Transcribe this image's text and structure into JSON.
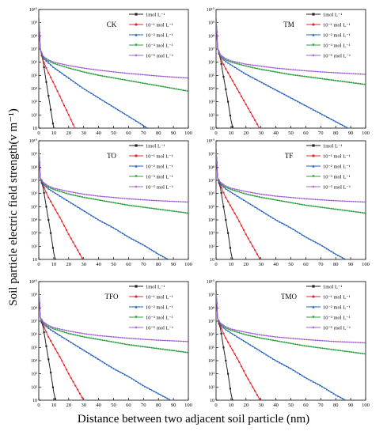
{
  "figure": {
    "ylabel": "Soil particle electric field strength(v m⁻¹)",
    "xlabel": "Distance between two adjacent soil particle (nm)"
  },
  "legend_entries": [
    {
      "label": "1mol L⁻¹",
      "color": "#222222",
      "marker": "square"
    },
    {
      "label": "10⁻¹ mol L⁻¹",
      "color": "#e8232a",
      "marker": "circle"
    },
    {
      "label": "10⁻² mol L⁻¹",
      "color": "#1f5fbf",
      "marker": "triangle"
    },
    {
      "label": "10⁻³ mol L⁻¹",
      "color": "#2ea043",
      "marker": "triangle-down"
    },
    {
      "label": "10⁻⁵ mol L⁻¹",
      "color": "#a35fd6",
      "marker": "diamond"
    }
  ],
  "chart_data": [
    {
      "type": "line",
      "title": "CK",
      "xlim": [
        0,
        100
      ],
      "ylim_log10": [
        1,
        10
      ],
      "x_ticks": [
        0,
        10,
        20,
        30,
        40,
        50,
        60,
        70,
        80,
        90,
        100
      ],
      "y_ticks": [
        "10",
        "10²",
        "10³",
        "10⁴",
        "10⁵",
        "10⁶",
        "10⁷",
        "10⁸",
        "10⁹",
        "10¹⁰"
      ],
      "series": [
        {
          "name": "1mol L⁻¹",
          "x": [
            0,
            1,
            3,
            5,
            8,
            10,
            12
          ],
          "y_log10": [
            9.5,
            7.0,
            6.0,
            4.5,
            2.4,
            1.0,
            0
          ]
        },
        {
          "name": "10⁻¹ mol L⁻¹",
          "x": [
            0,
            1,
            3,
            6,
            10,
            15,
            20,
            25
          ],
          "y_log10": [
            9.5,
            7.0,
            6.1,
            5.3,
            4.4,
            3.2,
            2.0,
            0.8
          ]
        },
        {
          "name": "10⁻² mol L⁻¹",
          "x": [
            0,
            1,
            3,
            6,
            10,
            20,
            30,
            40,
            50,
            60,
            70,
            75
          ],
          "y_log10": [
            9.5,
            7.0,
            6.3,
            6.0,
            5.6,
            4.8,
            4.0,
            3.3,
            2.6,
            1.9,
            1.2,
            0.8
          ]
        },
        {
          "name": "10⁻³ mol L⁻¹",
          "x": [
            0,
            1,
            3,
            6,
            10,
            20,
            30,
            40,
            50,
            60,
            70,
            80,
            90,
            100
          ],
          "y_log10": [
            9.5,
            7.0,
            6.4,
            6.1,
            5.9,
            5.55,
            5.25,
            5.0,
            4.8,
            4.6,
            4.4,
            4.2,
            4.0,
            3.8
          ]
        },
        {
          "name": "10⁻⁵ mol L⁻¹",
          "x": [
            0,
            1,
            3,
            6,
            10,
            20,
            30,
            40,
            50,
            60,
            70,
            80,
            90,
            100
          ],
          "y_log10": [
            9.5,
            7.0,
            6.45,
            6.2,
            6.0,
            5.75,
            5.55,
            5.4,
            5.27,
            5.15,
            5.05,
            4.95,
            4.87,
            4.8
          ]
        }
      ]
    },
    {
      "type": "line",
      "title": "TM",
      "xlim": [
        0,
        100
      ],
      "ylim_log10": [
        1,
        10
      ],
      "x_ticks": [
        0,
        10,
        20,
        30,
        40,
        50,
        60,
        70,
        80,
        90,
        100
      ],
      "y_ticks": [
        "10",
        "10²",
        "10³",
        "10⁴",
        "10⁵",
        "10⁶",
        "10⁷",
        "10⁸",
        "10⁹",
        "10¹⁰"
      ],
      "series": [
        {
          "name": "1mol L⁻¹",
          "x": [
            0,
            1,
            3,
            5,
            8,
            10,
            12
          ],
          "y_log10": [
            9.5,
            7.1,
            6.2,
            4.9,
            3.0,
            1.6,
            0.6
          ]
        },
        {
          "name": "10⁻¹ mol L⁻¹",
          "x": [
            0,
            1,
            3,
            6,
            10,
            15,
            20,
            25,
            30
          ],
          "y_log10": [
            9.5,
            7.1,
            6.3,
            5.6,
            4.8,
            3.8,
            2.8,
            1.8,
            0.8
          ]
        },
        {
          "name": "10⁻² mol L⁻¹",
          "x": [
            0,
            1,
            3,
            6,
            10,
            20,
            30,
            40,
            50,
            60,
            70,
            80,
            90
          ],
          "y_log10": [
            9.5,
            7.1,
            6.4,
            6.1,
            5.8,
            5.1,
            4.5,
            3.9,
            3.3,
            2.7,
            2.1,
            1.5,
            0.9
          ]
        },
        {
          "name": "10⁻³ mol L⁻¹",
          "x": [
            0,
            1,
            3,
            6,
            10,
            20,
            30,
            40,
            50,
            60,
            70,
            80,
            90,
            100
          ],
          "y_log10": [
            9.5,
            7.1,
            6.5,
            6.2,
            6.0,
            5.7,
            5.45,
            5.25,
            5.05,
            4.9,
            4.75,
            4.6,
            4.45,
            4.3
          ]
        },
        {
          "name": "10⁻⁵ mol L⁻¹",
          "x": [
            0,
            1,
            3,
            6,
            10,
            20,
            30,
            40,
            50,
            60,
            70,
            80,
            90,
            100
          ],
          "y_log10": [
            9.5,
            7.1,
            6.55,
            6.3,
            6.1,
            5.85,
            5.7,
            5.55,
            5.45,
            5.35,
            5.27,
            5.2,
            5.14,
            5.08
          ]
        }
      ]
    },
    {
      "type": "line",
      "title": "TO",
      "xlim": [
        0,
        100
      ],
      "ylim_log10": [
        1,
        10
      ],
      "x_ticks": [
        0,
        10,
        20,
        30,
        40,
        50,
        60,
        70,
        80,
        90,
        100
      ],
      "y_ticks": [
        "10",
        "10²",
        "10³",
        "10⁴",
        "10⁵",
        "10⁶",
        "10⁷",
        "10⁸",
        "10⁹",
        "10¹⁰"
      ],
      "series": [
        {
          "name": "1mol L⁻¹",
          "x": [
            0,
            1,
            3,
            5,
            8,
            10,
            12
          ],
          "y_log10": [
            9.5,
            7.2,
            6.4,
            5.0,
            3.0,
            1.5,
            0.5
          ]
        },
        {
          "name": "10⁻¹ mol L⁻¹",
          "x": [
            0,
            1,
            3,
            6,
            10,
            15,
            20,
            25,
            30
          ],
          "y_log10": [
            9.5,
            7.2,
            6.6,
            5.8,
            5.0,
            4.0,
            2.9,
            1.9,
            0.9
          ]
        },
        {
          "name": "10⁻² mol L⁻¹",
          "x": [
            0,
            1,
            3,
            6,
            10,
            20,
            30,
            40,
            50,
            60,
            70,
            80,
            90
          ],
          "y_log10": [
            9.5,
            7.2,
            6.7,
            6.4,
            6.1,
            5.4,
            4.7,
            4.0,
            3.4,
            2.7,
            2.1,
            1.4,
            0.8
          ]
        },
        {
          "name": "10⁻³ mol L⁻¹",
          "x": [
            0,
            1,
            3,
            6,
            10,
            20,
            30,
            40,
            50,
            60,
            70,
            80,
            90,
            100
          ],
          "y_log10": [
            9.5,
            7.2,
            6.8,
            6.5,
            6.3,
            5.95,
            5.7,
            5.5,
            5.3,
            5.1,
            4.95,
            4.8,
            4.65,
            4.5
          ]
        },
        {
          "name": "10⁻⁵ mol L⁻¹",
          "x": [
            0,
            1,
            3,
            6,
            10,
            20,
            30,
            40,
            50,
            60,
            70,
            80,
            90,
            100
          ],
          "y_log10": [
            9.5,
            7.2,
            6.85,
            6.6,
            6.4,
            6.15,
            5.95,
            5.8,
            5.7,
            5.6,
            5.52,
            5.45,
            5.4,
            5.35
          ]
        }
      ]
    },
    {
      "type": "line",
      "title": "TF",
      "xlim": [
        0,
        100
      ],
      "ylim_log10": [
        1,
        10
      ],
      "x_ticks": [
        0,
        10,
        20,
        30,
        40,
        50,
        60,
        70,
        80,
        90,
        100
      ],
      "y_ticks": [
        "10",
        "10²",
        "10³",
        "10⁴",
        "10⁵",
        "10⁶",
        "10⁷",
        "10⁸",
        "10⁹",
        "10¹⁰"
      ],
      "series": [
        {
          "name": "1mol L⁻¹",
          "x": [
            0,
            1,
            3,
            5,
            8,
            10,
            12
          ],
          "y_log10": [
            9.5,
            7.2,
            6.4,
            5.0,
            3.0,
            1.5,
            0.5
          ]
        },
        {
          "name": "10⁻¹ mol L⁻¹",
          "x": [
            0,
            1,
            3,
            6,
            10,
            15,
            20,
            25,
            30
          ],
          "y_log10": [
            9.5,
            7.2,
            6.6,
            5.8,
            5.0,
            4.0,
            2.9,
            1.9,
            0.9
          ]
        },
        {
          "name": "10⁻² mol L⁻¹",
          "x": [
            0,
            1,
            3,
            6,
            10,
            20,
            30,
            40,
            50,
            60,
            70,
            80,
            90
          ],
          "y_log10": [
            9.5,
            7.2,
            6.7,
            6.4,
            6.1,
            5.4,
            4.7,
            4.0,
            3.4,
            2.7,
            2.1,
            1.4,
            0.8
          ]
        },
        {
          "name": "10⁻³ mol L⁻¹",
          "x": [
            0,
            1,
            3,
            6,
            10,
            20,
            30,
            40,
            50,
            60,
            70,
            80,
            90,
            100
          ],
          "y_log10": [
            9.5,
            7.2,
            6.8,
            6.5,
            6.3,
            5.95,
            5.7,
            5.5,
            5.3,
            5.1,
            4.95,
            4.8,
            4.65,
            4.5
          ]
        },
        {
          "name": "10⁻⁵ mol L⁻¹",
          "x": [
            0,
            1,
            3,
            6,
            10,
            20,
            30,
            40,
            50,
            60,
            70,
            80,
            90,
            100
          ],
          "y_log10": [
            9.5,
            7.2,
            6.85,
            6.6,
            6.4,
            6.15,
            5.95,
            5.8,
            5.7,
            5.6,
            5.52,
            5.45,
            5.4,
            5.35
          ]
        }
      ]
    },
    {
      "type": "line",
      "title": "TFO",
      "xlim": [
        0,
        100
      ],
      "ylim_log10": [
        1,
        10
      ],
      "x_ticks": [
        0,
        10,
        20,
        30,
        40,
        50,
        60,
        70,
        80,
        90,
        100
      ],
      "y_ticks": [
        "10",
        "10²",
        "10³",
        "10⁴",
        "10⁵",
        "10⁶",
        "10⁷",
        "10⁸",
        "10⁹",
        "10¹⁰"
      ],
      "series": [
        {
          "name": "1mol L⁻¹",
          "x": [
            0,
            1,
            3,
            5,
            8,
            10,
            12
          ],
          "y_log10": [
            9.5,
            7.3,
            6.5,
            5.1,
            3.1,
            1.6,
            0.6
          ]
        },
        {
          "name": "10⁻¹ mol L⁻¹",
          "x": [
            0,
            1,
            3,
            6,
            10,
            15,
            20,
            25,
            30
          ],
          "y_log10": [
            9.5,
            7.3,
            6.7,
            5.9,
            5.1,
            4.1,
            3.0,
            2.0,
            1.0
          ]
        },
        {
          "name": "10⁻² mol L⁻¹",
          "x": [
            0,
            1,
            3,
            6,
            10,
            20,
            30,
            40,
            50,
            60,
            70,
            80,
            90
          ],
          "y_log10": [
            9.5,
            7.3,
            6.8,
            6.5,
            6.2,
            5.5,
            4.8,
            4.1,
            3.4,
            2.8,
            2.1,
            1.5,
            0.9
          ]
        },
        {
          "name": "10⁻³ mol L⁻¹",
          "x": [
            0,
            1,
            3,
            6,
            10,
            20,
            30,
            40,
            50,
            60,
            70,
            80,
            90,
            100
          ],
          "y_log10": [
            9.5,
            7.3,
            6.9,
            6.6,
            6.4,
            6.05,
            5.8,
            5.6,
            5.4,
            5.2,
            5.05,
            4.9,
            4.75,
            4.6
          ]
        },
        {
          "name": "10⁻⁵ mol L⁻¹",
          "x": [
            0,
            1,
            3,
            6,
            10,
            20,
            30,
            40,
            50,
            60,
            70,
            80,
            90,
            100
          ],
          "y_log10": [
            9.5,
            7.3,
            6.95,
            6.7,
            6.5,
            6.25,
            6.05,
            5.9,
            5.8,
            5.7,
            5.62,
            5.55,
            5.5,
            5.45
          ]
        }
      ]
    },
    {
      "type": "line",
      "title": "TMO",
      "xlim": [
        0,
        100
      ],
      "ylim_log10": [
        1,
        10
      ],
      "x_ticks": [
        0,
        10,
        20,
        30,
        40,
        50,
        60,
        70,
        80,
        90,
        100
      ],
      "y_ticks": [
        "10",
        "10²",
        "10³",
        "10⁴",
        "10⁵",
        "10⁶",
        "10⁷",
        "10⁸",
        "10⁹",
        "10¹⁰"
      ],
      "series": [
        {
          "name": "1mol L⁻¹",
          "x": [
            0,
            1,
            3,
            5,
            8,
            10,
            12
          ],
          "y_log10": [
            9.5,
            7.2,
            6.4,
            5.0,
            3.0,
            1.5,
            0.5
          ]
        },
        {
          "name": "10⁻¹ mol L⁻¹",
          "x": [
            0,
            1,
            3,
            6,
            10,
            15,
            20,
            25,
            30
          ],
          "y_log10": [
            9.5,
            7.2,
            6.6,
            5.8,
            5.0,
            4.0,
            2.9,
            1.9,
            0.9
          ]
        },
        {
          "name": "10⁻² mol L⁻¹",
          "x": [
            0,
            1,
            3,
            6,
            10,
            20,
            30,
            40,
            50,
            60,
            70,
            80,
            90
          ],
          "y_log10": [
            9.5,
            7.2,
            6.7,
            6.4,
            6.1,
            5.4,
            4.7,
            4.0,
            3.4,
            2.7,
            2.1,
            1.4,
            0.8
          ]
        },
        {
          "name": "10⁻³ mol L⁻¹",
          "x": [
            0,
            1,
            3,
            6,
            10,
            20,
            30,
            40,
            50,
            60,
            70,
            80,
            90,
            100
          ],
          "y_log10": [
            9.5,
            7.2,
            6.8,
            6.5,
            6.3,
            5.95,
            5.7,
            5.5,
            5.3,
            5.1,
            4.95,
            4.8,
            4.65,
            4.5
          ]
        },
        {
          "name": "10⁻⁵ mol L⁻¹",
          "x": [
            0,
            1,
            3,
            6,
            10,
            20,
            30,
            40,
            50,
            60,
            70,
            80,
            90,
            100
          ],
          "y_log10": [
            9.5,
            7.2,
            6.85,
            6.6,
            6.4,
            6.15,
            5.95,
            5.8,
            5.7,
            5.6,
            5.52,
            5.45,
            5.4,
            5.35
          ]
        }
      ]
    }
  ]
}
